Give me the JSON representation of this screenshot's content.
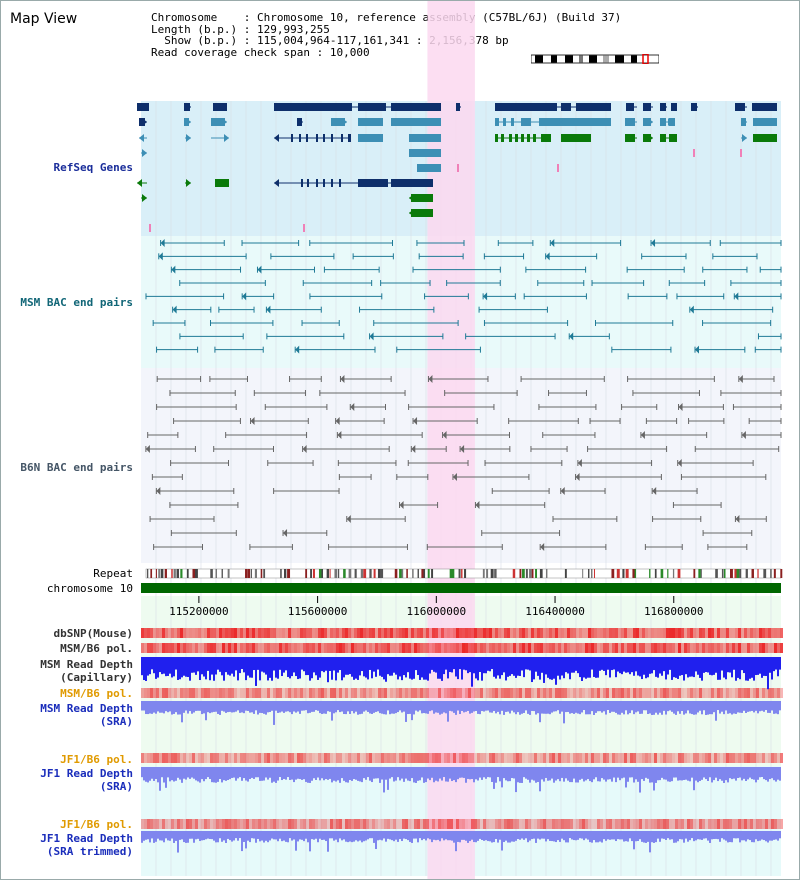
{
  "page": {
    "title": "Map View"
  },
  "info": {
    "chromosome_label": "Chromosome",
    "chromosome_value": "Chromosome 10, reference assembly (C57BL/6J) (Build 37)",
    "length_label": "Length (b.p.)",
    "length_value": "129,993,255",
    "show_label": "Show (b.p.)",
    "show_value": "115,004,964-117,161,341 : 2,156,378 bp",
    "coverage_label": "Read coverage check span",
    "coverage_value": "10,000"
  },
  "tracks": {
    "refseq": "RefSeq Genes",
    "msm_bac": "MSM BAC end pairs",
    "b6n_bac": "B6N BAC end pairs",
    "repeat": "Repeat",
    "chromosome": "chromosome 10",
    "dbsnp": "dbSNP(Mouse)",
    "msm_b6_pol_1": "MSM/B6 pol.",
    "msm_depth_cap_1": "MSM Read Depth",
    "msm_depth_cap_2": "(Capillary)",
    "msm_b6_pol_2": "MSM/B6 pol.",
    "msm_depth_sra_1": "MSM Read Depth",
    "msm_depth_sra_2": "(SRA)",
    "jf1_b6_pol_1": "JF1/B6 pol.",
    "jf1_depth_sra_1": "JF1 Read Depth",
    "jf1_depth_sra_2": "(SRA)",
    "jf1_b6_pol_2": "JF1/B6 pol.",
    "jf1_depth_trim_1": "JF1 Read Depth",
    "jf1_depth_trim_2": "(SRA trimmed)"
  },
  "axis": {
    "ticks": [
      "115200000",
      "115600000",
      "116000000",
      "116400000",
      "116800000"
    ],
    "tick_values": [
      115200000,
      115600000,
      116000000,
      116400000,
      116800000
    ],
    "view_start": 115004964,
    "view_end": 117161341
  },
  "highlight": {
    "start": 115970000,
    "end": 116130000
  },
  "colors": {
    "refseq_bg": "#d9eff8",
    "msm_bg": "#e9fafa",
    "b6n_bg": "#f3f5fb",
    "lower_bg": "#eefbf0",
    "highlight": "#fbd8f0",
    "gene_dark": "#0e2f6b",
    "gene_mid": "#3d8fb5",
    "gene_green": "#0a7a0a",
    "chromosome_bar": "#006600",
    "msm_line": "#1f7a96",
    "b6n_line": "#666666",
    "depth_blue": "#2020ee",
    "depth_light": "#7f86ee"
  }
}
